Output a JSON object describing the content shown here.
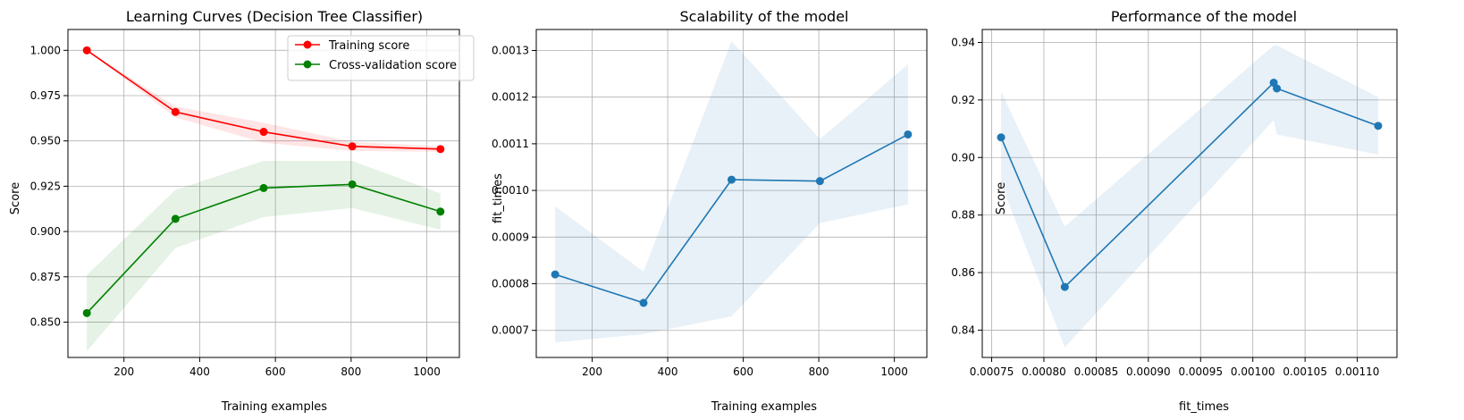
{
  "chart_data": [
    {
      "type": "line",
      "title": "Learning Curves (Decision Tree Classifier)",
      "xlabel": "Training examples",
      "ylabel": "Score",
      "xlim": [
        52,
        1086
      ],
      "ylim": [
        0.8305,
        1.0115
      ],
      "xticks": [
        200,
        400,
        600,
        800,
        1000
      ],
      "xtick_labels": [
        "200",
        "400",
        "600",
        "800",
        "1000"
      ],
      "yticks": [
        0.85,
        0.875,
        0.9,
        0.925,
        0.95,
        0.975,
        1.0
      ],
      "ytick_labels": [
        "0.850",
        "0.875",
        "0.900",
        "0.925",
        "0.950",
        "0.975",
        "1.000"
      ],
      "grid": true,
      "legend": "upper right",
      "x": [
        102,
        336,
        569,
        803,
        1036
      ],
      "series": [
        {
          "name": "Training score",
          "color": "#ff0000",
          "values": [
            1.0,
            0.966,
            0.955,
            0.947,
            0.9455
          ],
          "lower": [
            1.0,
            0.963,
            0.949,
            0.9445,
            0.944
          ],
          "upper": [
            1.0,
            0.969,
            0.96,
            0.9495,
            0.947
          ]
        },
        {
          "name": "Cross-validation score",
          "color": "#008000",
          "values": [
            0.855,
            0.907,
            0.924,
            0.926,
            0.911
          ],
          "lower": [
            0.834,
            0.891,
            0.908,
            0.913,
            0.901
          ],
          "upper": [
            0.876,
            0.923,
            0.939,
            0.939,
            0.921
          ]
        }
      ]
    },
    {
      "type": "line",
      "title": "Scalability of the model",
      "xlabel": "Training examples",
      "ylabel": "fit_times",
      "xlim": [
        52,
        1086
      ],
      "ylim": [
        0.000642,
        0.001345
      ],
      "xticks": [
        200,
        400,
        600,
        800,
        1000
      ],
      "xtick_labels": [
        "200",
        "400",
        "600",
        "800",
        "1000"
      ],
      "yticks": [
        0.0007,
        0.0008,
        0.0009,
        0.001,
        0.0011,
        0.0012,
        0.0013
      ],
      "ytick_labels": [
        "0.0007",
        "0.0008",
        "0.0009",
        "0.0010",
        "0.0011",
        "0.0012",
        "0.0013"
      ],
      "grid": true,
      "x": [
        102,
        336,
        569,
        803,
        1036
      ],
      "series": [
        {
          "color": "#1f77b4",
          "values": [
            0.00082,
            0.000759,
            0.001023,
            0.00102,
            0.00112
          ],
          "lower": [
            0.000674,
            0.000692,
            0.00073,
            0.00093,
            0.00097
          ],
          "upper": [
            0.000966,
            0.000826,
            0.00132,
            0.00111,
            0.00127
          ]
        }
      ]
    },
    {
      "type": "line",
      "title": "Performance of the model",
      "xlabel": "fit_times",
      "ylabel": "Score",
      "xlim": [
        0.000741,
        0.001138
      ],
      "ylim": [
        0.8305,
        0.9445
      ],
      "xticks": [
        0.00075,
        0.0008,
        0.00085,
        0.0009,
        0.00095,
        0.001,
        0.00105,
        0.0011
      ],
      "xtick_labels": [
        "0.00075",
        "0.00080",
        "0.00085",
        "0.00090",
        "0.00095",
        "0.00100",
        "0.00105",
        "0.00110"
      ],
      "yticks": [
        0.84,
        0.86,
        0.88,
        0.9,
        0.92,
        0.94
      ],
      "ytick_labels": [
        "0.84",
        "0.86",
        "0.88",
        "0.90",
        "0.92",
        "0.94"
      ],
      "grid": true,
      "x": [
        0.000759,
        0.00082,
        0.00102,
        0.001023,
        0.00112
      ],
      "series": [
        {
          "color": "#1f77b4",
          "values": [
            0.907,
            0.855,
            0.926,
            0.924,
            0.911
          ],
          "lower": [
            0.891,
            0.834,
            0.913,
            0.908,
            0.901
          ],
          "upper": [
            0.923,
            0.876,
            0.939,
            0.939,
            0.921
          ]
        }
      ]
    }
  ]
}
